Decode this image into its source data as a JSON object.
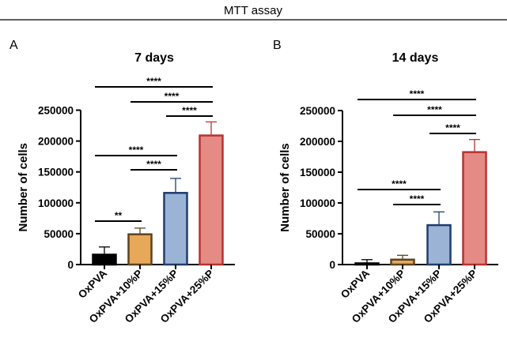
{
  "figure_title": "MTT assay",
  "chart_data": [
    {
      "type": "bar",
      "panel": "A",
      "title": "7 days",
      "ylabel": "Number of cells",
      "ylim": [
        0,
        250000
      ],
      "yticks": [
        "0",
        "50000",
        "100000",
        "150000",
        "200000",
        "250000"
      ],
      "categories": [
        "OxPVA",
        "OxPVA+10%P",
        "OxPVA+15%P",
        "OxPVA+25%P"
      ],
      "values": [
        16000,
        49000,
        116000,
        209000
      ],
      "error_upper": [
        28500,
        59000,
        139500,
        231000
      ],
      "colors": [
        "#000000",
        "#e8a85a",
        "#9bb4d6",
        "#e58a85"
      ],
      "edge_colors": [
        "#000000",
        "#5a4420",
        "#1f3d6e",
        "#b83232"
      ],
      "significance": [
        {
          "from": 0,
          "to": 1,
          "label": "**"
        },
        {
          "from": 0,
          "to": 2,
          "label": "****"
        },
        {
          "from": 1,
          "to": 2,
          "label": "****"
        },
        {
          "from": 2,
          "to": 3,
          "label": "****"
        },
        {
          "from": 1,
          "to": 3,
          "label": "****"
        },
        {
          "from": 0,
          "to": 3,
          "label": "****"
        }
      ]
    },
    {
      "type": "bar",
      "panel": "B",
      "title": "14 days",
      "ylabel": "Number of cells",
      "ylim": [
        0,
        250000
      ],
      "yticks": [
        "0",
        "50000",
        "100000",
        "150000",
        "200000",
        "250000"
      ],
      "categories": [
        "OxPVA",
        "OxPVA+10%P",
        "OxPVA+15%P",
        "OxPVA+25%P"
      ],
      "values": [
        2000,
        8000,
        64000,
        182500
      ],
      "error_upper": [
        8000,
        15000,
        85500,
        203000
      ],
      "colors": [
        "#000000",
        "#e8a85a",
        "#9bb4d6",
        "#e58a85"
      ],
      "edge_colors": [
        "#000000",
        "#5a4420",
        "#1f3d6e",
        "#b83232"
      ],
      "significance": [
        {
          "from": 0,
          "to": 2,
          "label": "****"
        },
        {
          "from": 1,
          "to": 2,
          "label": "****"
        },
        {
          "from": 2,
          "to": 3,
          "label": "****"
        },
        {
          "from": 1,
          "to": 3,
          "label": "****"
        },
        {
          "from": 0,
          "to": 3,
          "label": "****"
        }
      ]
    }
  ]
}
